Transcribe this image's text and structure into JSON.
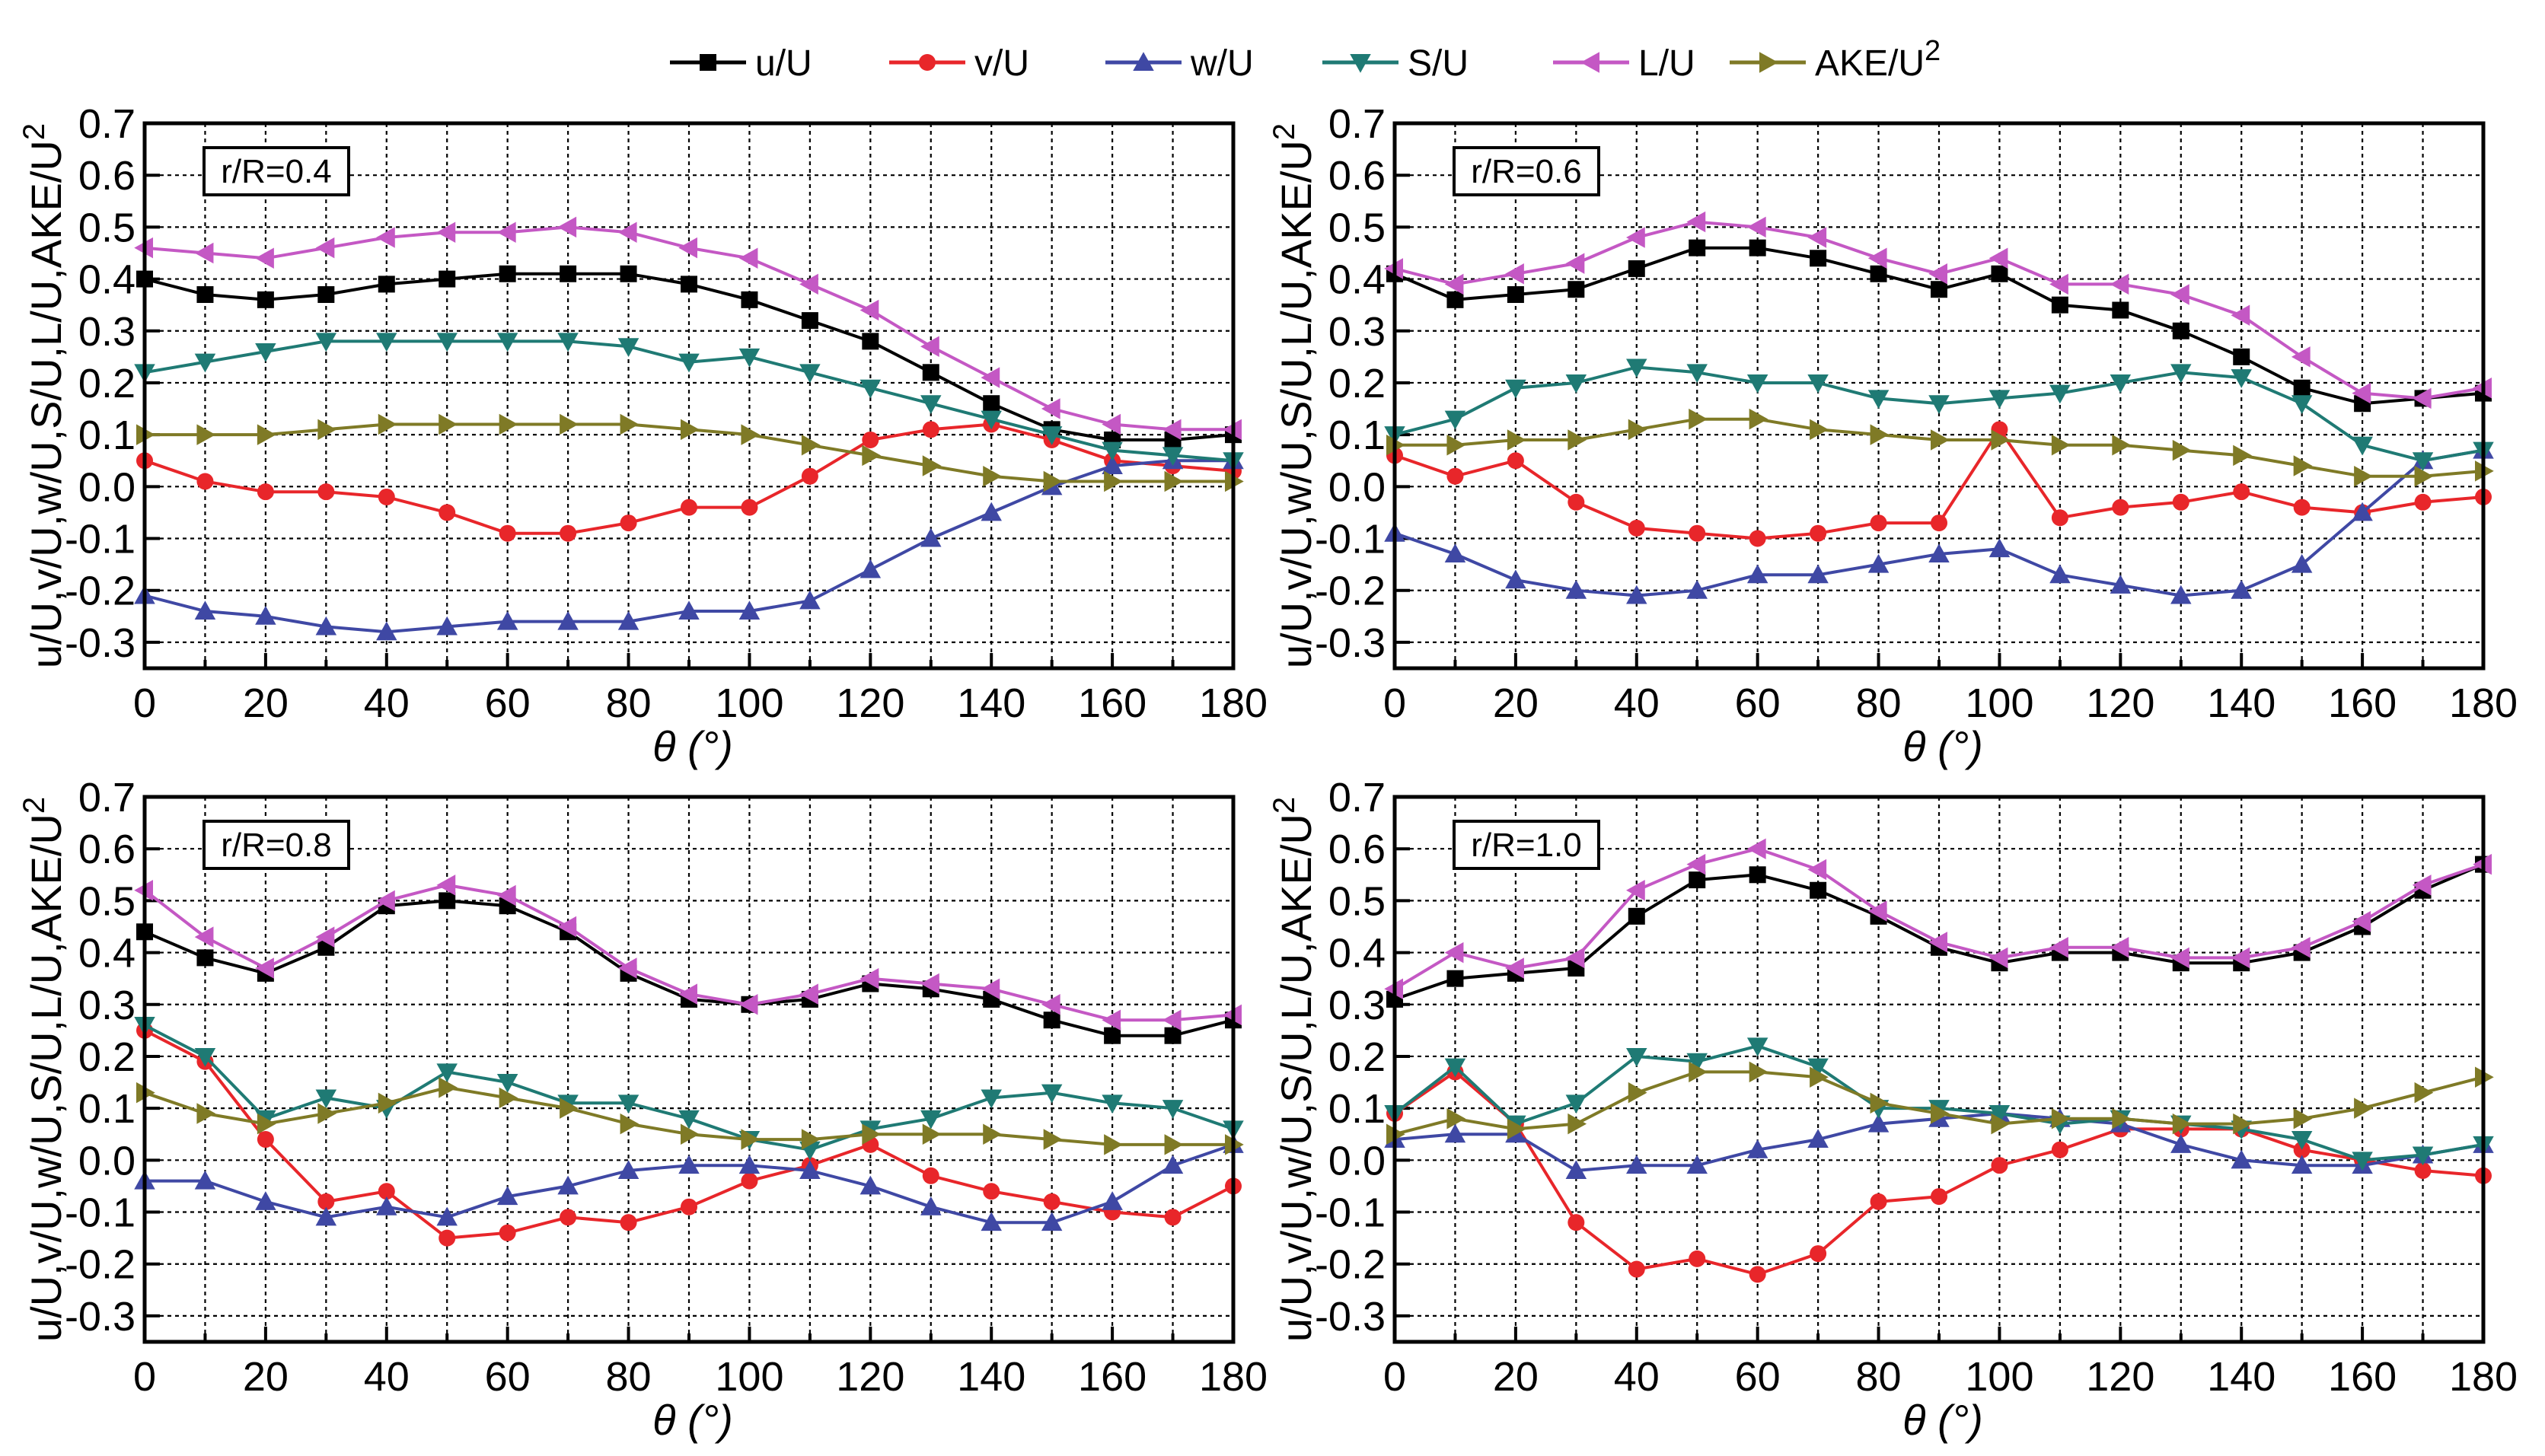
{
  "figure": {
    "legend": [
      {
        "name": "u/U",
        "label": "u/U",
        "sup": "",
        "color": "#000000",
        "marker": "square"
      },
      {
        "name": "v/U",
        "label": "v/U",
        "sup": "",
        "color": "#e8262a",
        "marker": "circle"
      },
      {
        "name": "w/U",
        "label": "w/U",
        "sup": "",
        "color": "#3f48a4",
        "marker": "triangle-up"
      },
      {
        "name": "S/U",
        "label": "S/U",
        "sup": "",
        "color": "#1f7a74",
        "marker": "triangle-down"
      },
      {
        "name": "L/U",
        "label": "L/U",
        "sup": "",
        "color": "#c458c4",
        "marker": "triangle-left"
      },
      {
        "name": "AKE/U2",
        "label": "AKE/U",
        "sup": "2",
        "color": "#7f7a26",
        "marker": "triangle-right"
      }
    ]
  },
  "chart_data": [
    {
      "type": "line",
      "panel_label": "r/R=0.4",
      "xlabel": "θ (°)",
      "ylabel": "u/U,v/U,w/U,S/U,L/U,AKE/U",
      "ylabel_sup": "2",
      "xlim": [
        0,
        180
      ],
      "ylim": [
        -0.35,
        0.7
      ],
      "xticks": [
        "0",
        "20",
        "40",
        "60",
        "80",
        "100",
        "120",
        "140",
        "160",
        "180"
      ],
      "yticks": [
        "0.7",
        "0.6",
        "0.5",
        "0.4",
        "0.3",
        "0.2",
        "0.1",
        "0.0",
        "-0.1",
        "-0.2",
        "-0.3"
      ],
      "grid": true,
      "x": [
        0,
        10,
        20,
        30,
        40,
        50,
        60,
        70,
        80,
        90,
        100,
        110,
        120,
        130,
        140,
        150,
        160,
        170,
        180
      ],
      "series": [
        {
          "name": "u/U",
          "values": [
            0.4,
            0.37,
            0.36,
            0.37,
            0.39,
            0.4,
            0.41,
            0.41,
            0.41,
            0.39,
            0.36,
            0.32,
            0.28,
            0.22,
            0.16,
            0.11,
            0.09,
            0.09,
            0.1
          ]
        },
        {
          "name": "v/U",
          "values": [
            0.05,
            0.01,
            -0.01,
            -0.01,
            -0.02,
            -0.05,
            -0.09,
            -0.09,
            -0.07,
            -0.04,
            -0.04,
            0.02,
            0.09,
            0.11,
            0.12,
            0.09,
            0.05,
            0.04,
            0.03
          ]
        },
        {
          "name": "w/U",
          "values": [
            -0.21,
            -0.24,
            -0.25,
            -0.27,
            -0.28,
            -0.27,
            -0.26,
            -0.26,
            -0.26,
            -0.24,
            -0.24,
            -0.22,
            -0.16,
            -0.1,
            -0.05,
            0.0,
            0.04,
            0.05,
            0.05
          ]
        },
        {
          "name": "S/U",
          "values": [
            0.22,
            0.24,
            0.26,
            0.28,
            0.28,
            0.28,
            0.28,
            0.28,
            0.27,
            0.24,
            0.25,
            0.22,
            0.19,
            0.16,
            0.13,
            0.1,
            0.07,
            0.06,
            0.05
          ]
        },
        {
          "name": "L/U",
          "values": [
            0.46,
            0.45,
            0.44,
            0.46,
            0.48,
            0.49,
            0.49,
            0.5,
            0.49,
            0.46,
            0.44,
            0.39,
            0.34,
            0.27,
            0.21,
            0.15,
            0.12,
            0.11,
            0.11
          ]
        },
        {
          "name": "AKE/U2",
          "values": [
            0.1,
            0.1,
            0.1,
            0.11,
            0.12,
            0.12,
            0.12,
            0.12,
            0.12,
            0.11,
            0.1,
            0.08,
            0.06,
            0.04,
            0.02,
            0.01,
            0.01,
            0.01,
            0.01
          ]
        }
      ]
    },
    {
      "type": "line",
      "panel_label": "r/R=0.6",
      "xlabel": "θ (°)",
      "ylabel": "u/U,v/U,w/U,S/U,L/U,AKE/U",
      "ylabel_sup": "2",
      "xlim": [
        0,
        180
      ],
      "ylim": [
        -0.35,
        0.7
      ],
      "xticks": [
        "0",
        "20",
        "40",
        "60",
        "80",
        "100",
        "120",
        "140",
        "160",
        "180"
      ],
      "yticks": [
        "0.7",
        "0.6",
        "0.5",
        "0.4",
        "0.3",
        "0.2",
        "0.1",
        "0.0",
        "-0.1",
        "-0.2",
        "-0.3"
      ],
      "grid": true,
      "x": [
        0,
        10,
        20,
        30,
        40,
        50,
        60,
        70,
        80,
        90,
        100,
        110,
        120,
        130,
        140,
        150,
        160,
        170,
        180
      ],
      "series": [
        {
          "name": "u/U",
          "values": [
            0.41,
            0.36,
            0.37,
            0.38,
            0.42,
            0.46,
            0.46,
            0.44,
            0.41,
            0.38,
            0.41,
            0.35,
            0.34,
            0.3,
            0.25,
            0.19,
            0.16,
            0.17,
            0.18
          ]
        },
        {
          "name": "v/U",
          "values": [
            0.06,
            0.02,
            0.05,
            -0.03,
            -0.08,
            -0.09,
            -0.1,
            -0.09,
            -0.07,
            -0.07,
            0.11,
            -0.06,
            -0.04,
            -0.03,
            -0.01,
            -0.04,
            -0.05,
            -0.03,
            -0.02
          ]
        },
        {
          "name": "w/U",
          "values": [
            -0.09,
            -0.13,
            -0.18,
            -0.2,
            -0.21,
            -0.2,
            -0.17,
            -0.17,
            -0.15,
            -0.13,
            -0.12,
            -0.17,
            -0.19,
            -0.21,
            -0.2,
            -0.15,
            -0.05,
            0.05,
            0.07
          ]
        },
        {
          "name": "S/U",
          "values": [
            0.1,
            0.13,
            0.19,
            0.2,
            0.23,
            0.22,
            0.2,
            0.2,
            0.17,
            0.16,
            0.17,
            0.18,
            0.2,
            0.22,
            0.21,
            0.16,
            0.08,
            0.05,
            0.07
          ]
        },
        {
          "name": "L/U",
          "values": [
            0.42,
            0.39,
            0.41,
            0.43,
            0.48,
            0.51,
            0.5,
            0.48,
            0.44,
            0.41,
            0.44,
            0.39,
            0.39,
            0.37,
            0.33,
            0.25,
            0.18,
            0.17,
            0.19
          ]
        },
        {
          "name": "AKE/U2",
          "values": [
            0.08,
            0.08,
            0.09,
            0.09,
            0.11,
            0.13,
            0.13,
            0.11,
            0.1,
            0.09,
            0.09,
            0.08,
            0.08,
            0.07,
            0.06,
            0.04,
            0.02,
            0.02,
            0.03
          ]
        }
      ]
    },
    {
      "type": "line",
      "panel_label": "r/R=0.8",
      "xlabel": "θ (°)",
      "ylabel": "u/U,v/U,w/U,S/U,L/U,AKE/U",
      "ylabel_sup": "2",
      "xlim": [
        0,
        180
      ],
      "ylim": [
        -0.35,
        0.7
      ],
      "xticks": [
        "0",
        "20",
        "40",
        "60",
        "80",
        "100",
        "120",
        "140",
        "160",
        "180"
      ],
      "yticks": [
        "0.7",
        "0.6",
        "0.5",
        "0.4",
        "0.3",
        "0.2",
        "0.1",
        "0.0",
        "-0.1",
        "-0.2",
        "-0.3"
      ],
      "grid": true,
      "x": [
        0,
        10,
        20,
        30,
        40,
        50,
        60,
        70,
        80,
        90,
        100,
        110,
        120,
        130,
        140,
        150,
        160,
        170,
        180
      ],
      "series": [
        {
          "name": "u/U",
          "values": [
            0.44,
            0.39,
            0.36,
            0.41,
            0.49,
            0.5,
            0.49,
            0.44,
            0.36,
            0.31,
            0.3,
            0.31,
            0.34,
            0.33,
            0.31,
            0.27,
            0.24,
            0.24,
            0.27
          ]
        },
        {
          "name": "v/U",
          "values": [
            0.25,
            0.19,
            0.04,
            -0.08,
            -0.06,
            -0.15,
            -0.14,
            -0.11,
            -0.12,
            -0.09,
            -0.04,
            -0.01,
            0.03,
            -0.03,
            -0.06,
            -0.08,
            -0.1,
            -0.11,
            -0.05
          ]
        },
        {
          "name": "w/U",
          "values": [
            -0.04,
            -0.04,
            -0.08,
            -0.11,
            -0.09,
            -0.11,
            -0.07,
            -0.05,
            -0.02,
            -0.01,
            -0.01,
            -0.02,
            -0.05,
            -0.09,
            -0.12,
            -0.12,
            -0.08,
            -0.01,
            0.03
          ]
        },
        {
          "name": "S/U",
          "values": [
            0.26,
            0.2,
            0.08,
            0.12,
            0.1,
            0.17,
            0.15,
            0.11,
            0.11,
            0.08,
            0.04,
            0.02,
            0.06,
            0.08,
            0.12,
            0.13,
            0.11,
            0.1,
            0.06
          ]
        },
        {
          "name": "L/U",
          "values": [
            0.52,
            0.43,
            0.37,
            0.43,
            0.5,
            0.53,
            0.51,
            0.45,
            0.37,
            0.32,
            0.3,
            0.32,
            0.35,
            0.34,
            0.33,
            0.3,
            0.27,
            0.27,
            0.28
          ]
        },
        {
          "name": "AKE/U2",
          "values": [
            0.13,
            0.09,
            0.07,
            0.09,
            0.11,
            0.14,
            0.12,
            0.1,
            0.07,
            0.05,
            0.04,
            0.04,
            0.05,
            0.05,
            0.05,
            0.04,
            0.03,
            0.03,
            0.03
          ]
        }
      ]
    },
    {
      "type": "line",
      "panel_label": "r/R=1.0",
      "xlabel": "θ (°)",
      "ylabel": "u/U,v/U,w/U,S/U,L/U,AKE/U",
      "ylabel_sup": "2",
      "xlim": [
        0,
        180
      ],
      "ylim": [
        -0.35,
        0.7
      ],
      "xticks": [
        "0",
        "20",
        "40",
        "60",
        "80",
        "100",
        "120",
        "140",
        "160",
        "180"
      ],
      "yticks": [
        "0.7",
        "0.6",
        "0.5",
        "0.4",
        "0.3",
        "0.2",
        "0.1",
        "0.0",
        "-0.1",
        "-0.2",
        "-0.3"
      ],
      "grid": true,
      "x": [
        0,
        10,
        20,
        30,
        40,
        50,
        60,
        70,
        80,
        90,
        100,
        110,
        120,
        130,
        140,
        150,
        160,
        170,
        180
      ],
      "series": [
        {
          "name": "u/U",
          "values": [
            0.31,
            0.35,
            0.36,
            0.37,
            0.47,
            0.54,
            0.55,
            0.52,
            0.47,
            0.41,
            0.38,
            0.4,
            0.4,
            0.38,
            0.38,
            0.4,
            0.45,
            0.52,
            0.57
          ]
        },
        {
          "name": "v/U",
          "values": [
            0.09,
            0.17,
            0.07,
            -0.12,
            -0.21,
            -0.19,
            -0.22,
            -0.18,
            -0.08,
            -0.07,
            -0.01,
            0.02,
            0.06,
            0.06,
            0.06,
            0.02,
            0.0,
            -0.02,
            -0.03
          ]
        },
        {
          "name": "w/U",
          "values": [
            0.04,
            0.05,
            0.05,
            -0.02,
            -0.01,
            -0.01,
            0.02,
            0.04,
            0.07,
            0.08,
            0.09,
            0.08,
            0.07,
            0.03,
            0.0,
            -0.01,
            -0.01,
            0.01,
            0.03
          ]
        },
        {
          "name": "S/U",
          "values": [
            0.09,
            0.18,
            0.07,
            0.11,
            0.2,
            0.19,
            0.22,
            0.18,
            0.1,
            0.1,
            0.09,
            0.07,
            0.08,
            0.07,
            0.06,
            0.04,
            0.0,
            0.01,
            0.03
          ]
        },
        {
          "name": "L/U",
          "values": [
            0.33,
            0.4,
            0.37,
            0.39,
            0.52,
            0.57,
            0.6,
            0.56,
            0.48,
            0.42,
            0.39,
            0.41,
            0.41,
            0.39,
            0.39,
            0.41,
            0.46,
            0.53,
            0.57
          ]
        },
        {
          "name": "AKE/U2",
          "values": [
            0.05,
            0.08,
            0.06,
            0.07,
            0.13,
            0.17,
            0.17,
            0.16,
            0.11,
            0.09,
            0.07,
            0.08,
            0.08,
            0.07,
            0.07,
            0.08,
            0.1,
            0.13,
            0.16
          ]
        }
      ]
    }
  ]
}
